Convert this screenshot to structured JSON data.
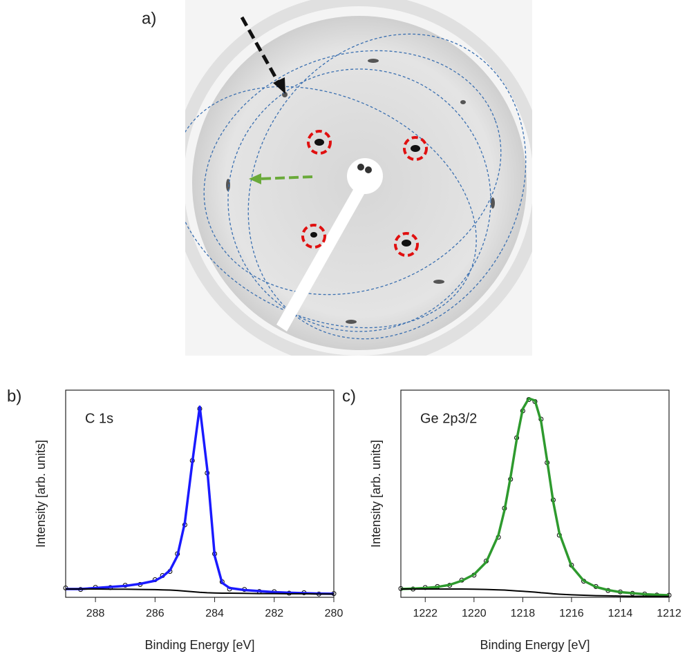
{
  "panel_a": {
    "label": "a)"
  },
  "chart_data": [
    {
      "type": "line",
      "panel_label": "b)",
      "annotation": "C 1s",
      "xlabel": "Binding Energy [eV]",
      "ylabel": "Intensity [arb. units]",
      "xlim": [
        289,
        280
      ],
      "xticks": [
        288,
        286,
        284,
        282,
        280
      ],
      "ylim": [
        0,
        1
      ],
      "x": [
        289,
        288.5,
        288,
        287.5,
        287,
        286.5,
        286,
        285.75,
        285.5,
        285.25,
        285,
        284.75,
        284.5,
        284.25,
        284,
        283.75,
        283.5,
        283,
        282.5,
        282,
        281.5,
        281,
        280.5,
        280
      ],
      "series": [
        {
          "color": "#000000",
          "marker": "circle",
          "values": [
            0.045,
            0.038,
            0.048,
            0.047,
            0.058,
            0.062,
            0.085,
            0.105,
            0.125,
            0.21,
            0.35,
            0.66,
            0.91,
            0.6,
            0.21,
            0.075,
            0.04,
            0.038,
            0.028,
            0.027,
            0.02,
            0.022,
            0.016,
            0.018
          ]
        },
        {
          "color": "#1a1aff",
          "values": [
            0.04,
            0.04,
            0.045,
            0.05,
            0.055,
            0.065,
            0.08,
            0.1,
            0.13,
            0.2,
            0.36,
            0.65,
            0.92,
            0.62,
            0.2,
            0.07,
            0.045,
            0.035,
            0.03,
            0.025,
            0.022,
            0.02,
            0.018,
            0.017
          ]
        },
        {
          "color": "#000000",
          "values": [
            0.04,
            0.04,
            0.04,
            0.039,
            0.039,
            0.038,
            0.037,
            0.036,
            0.035,
            0.033,
            0.03,
            0.027,
            0.024,
            0.022,
            0.021,
            0.02,
            0.02,
            0.019,
            0.018,
            0.018,
            0.017,
            0.017,
            0.016,
            0.016
          ]
        }
      ]
    },
    {
      "type": "line",
      "panel_label": "c)",
      "annotation": "Ge 2p3/2",
      "xlabel": "Binding Energy [eV]",
      "ylabel": "Intensity [arb. units]",
      "xlim": [
        1223,
        1212
      ],
      "xticks": [
        1222,
        1220,
        1218,
        1216,
        1214,
        1212
      ],
      "ylim": [
        0,
        1
      ],
      "x": [
        1223,
        1222.5,
        1222,
        1221.5,
        1221,
        1220.5,
        1220,
        1219.5,
        1219,
        1218.75,
        1218.5,
        1218.25,
        1218,
        1217.75,
        1217.5,
        1217.25,
        1217,
        1216.75,
        1216.5,
        1216,
        1215.5,
        1215,
        1214.5,
        1214,
        1213.5,
        1213,
        1212.5,
        1212
      ],
      "series": [
        {
          "color": "#000000",
          "marker": "circle",
          "values": [
            0.042,
            0.04,
            0.047,
            0.052,
            0.058,
            0.083,
            0.107,
            0.175,
            0.29,
            0.43,
            0.57,
            0.77,
            0.9,
            0.955,
            0.945,
            0.86,
            0.65,
            0.47,
            0.3,
            0.155,
            0.078,
            0.052,
            0.033,
            0.026,
            0.019,
            0.016,
            0.011,
            0.01
          ]
        },
        {
          "color": "#2e9a2e",
          "values": [
            0.04,
            0.042,
            0.045,
            0.05,
            0.06,
            0.08,
            0.11,
            0.17,
            0.3,
            0.42,
            0.58,
            0.76,
            0.91,
            0.96,
            0.95,
            0.85,
            0.66,
            0.46,
            0.31,
            0.15,
            0.08,
            0.05,
            0.035,
            0.025,
            0.02,
            0.015,
            0.012,
            0.01
          ]
        },
        {
          "color": "#000000",
          "values": [
            0.04,
            0.04,
            0.04,
            0.04,
            0.04,
            0.04,
            0.039,
            0.038,
            0.036,
            0.035,
            0.033,
            0.031,
            0.029,
            0.027,
            0.025,
            0.022,
            0.02,
            0.017,
            0.015,
            0.012,
            0.01,
            0.008,
            0.007,
            0.006,
            0.005,
            0.005,
            0.004,
            0.004
          ]
        }
      ]
    }
  ]
}
